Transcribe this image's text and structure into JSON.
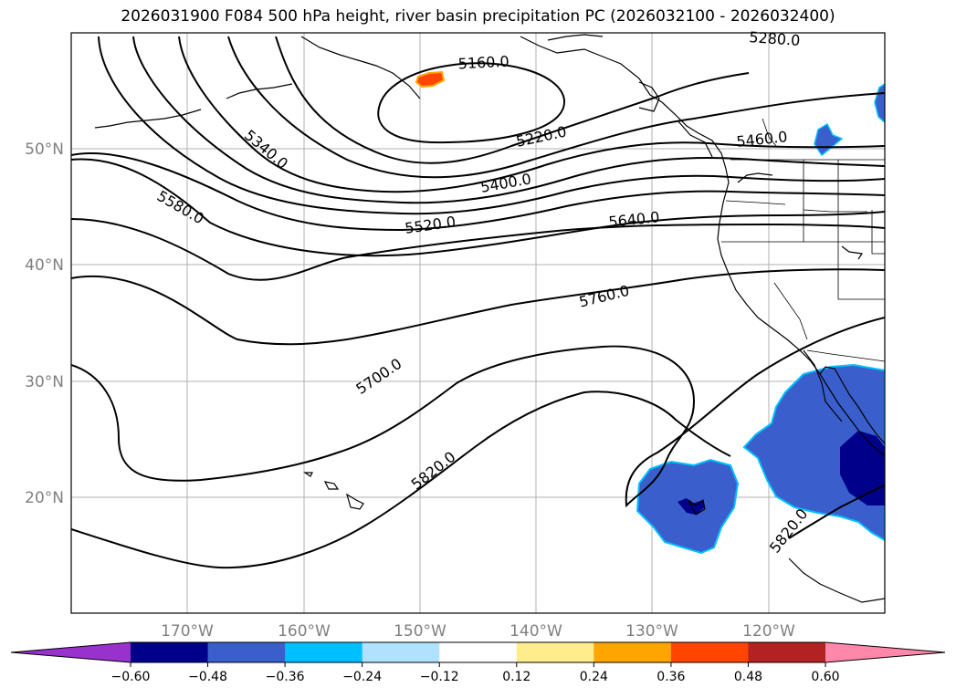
{
  "title": "2026031900 F084 500 hPa height, river basin precipitation PC (2026032100 - 2026032400)",
  "map": {
    "lon_labels": [
      "170°W",
      "160°W",
      "150°W",
      "140°W",
      "130°W",
      "120°W"
    ],
    "lat_labels": [
      "50°N",
      "40°N",
      "30°N",
      "20°N"
    ],
    "contours": [
      {
        "label": "5160.0"
      },
      {
        "label": "5220.0"
      },
      {
        "label": "5280.0"
      },
      {
        "label": "5340.0"
      },
      {
        "label": "5400.0"
      },
      {
        "label": "5460.0"
      },
      {
        "label": "5520.0"
      },
      {
        "label": "5580.0"
      },
      {
        "label": "5640.0"
      },
      {
        "label": "5700.0"
      },
      {
        "label": "5760.0"
      },
      {
        "label": "5820.0"
      },
      {
        "label": "5820.0"
      }
    ]
  },
  "colorbar": {
    "colors": [
      "#9932cc",
      "#00008b",
      "#3a5fcd",
      "#00bfff",
      "#b0e2ff",
      "#ffffff",
      "#ffec8b",
      "#ffa500",
      "#ff4500",
      "#b22222",
      "#ff88aa"
    ],
    "tick_labels": [
      "−0.60",
      "−0.48",
      "−0.36",
      "−0.24",
      "−0.12",
      "0.12",
      "0.24",
      "0.36",
      "0.48",
      "0.60"
    ]
  }
}
